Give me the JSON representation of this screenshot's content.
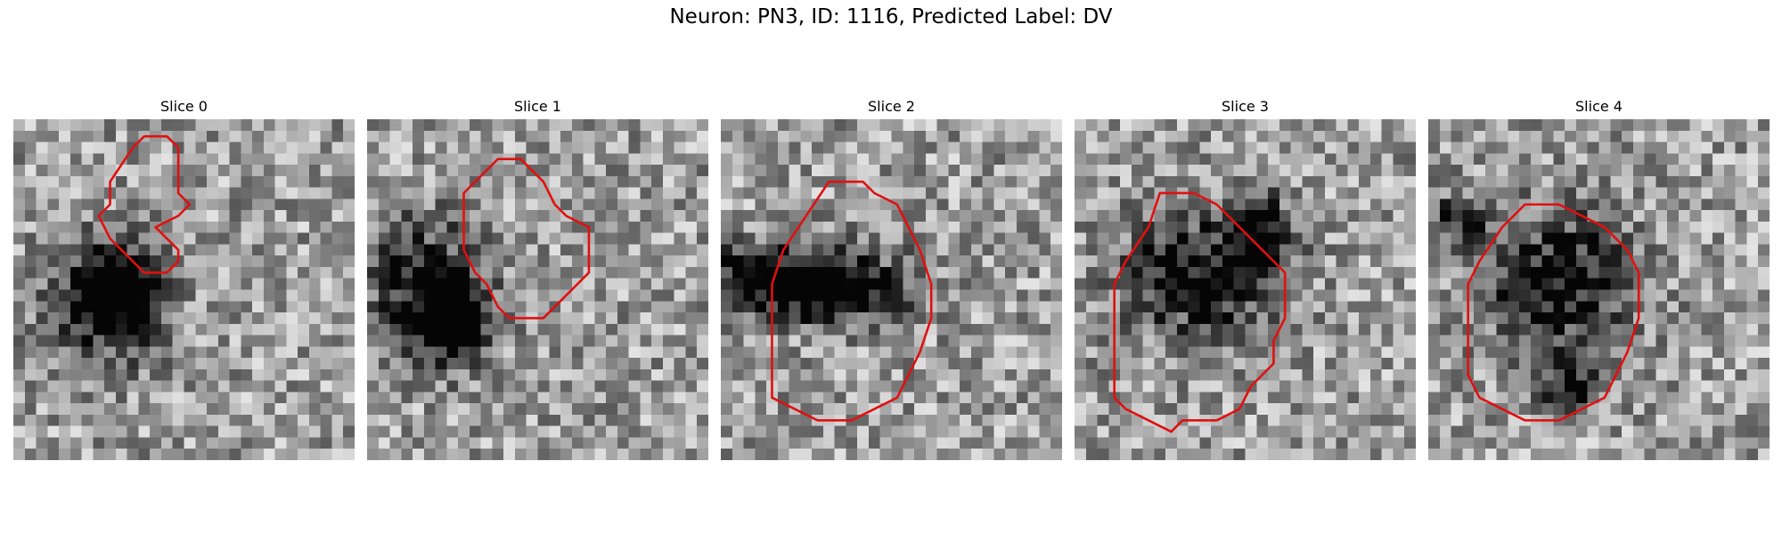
{
  "figure": {
    "title": "Neuron: PN3, ID: 1116, Predicted Label: DV",
    "accent_color": "#e01010"
  },
  "panels": [
    {
      "title": "Slice 0",
      "contour": [
        [
          11.5,
          1.5
        ],
        [
          13.5,
          1.5
        ],
        [
          14.5,
          2.5
        ],
        [
          14.5,
          6.5
        ],
        [
          15.5,
          7.5
        ],
        [
          14.5,
          8.5
        ],
        [
          12.5,
          9.5
        ],
        [
          13.5,
          10.5
        ],
        [
          14.5,
          11.5
        ],
        [
          14.5,
          12.5
        ],
        [
          13.5,
          13.5
        ],
        [
          11.5,
          13.5
        ],
        [
          10.5,
          12.5
        ],
        [
          9.5,
          11.5
        ],
        [
          8.5,
          10.5
        ],
        [
          7.5,
          8.5
        ],
        [
          8.5,
          7.5
        ],
        [
          8.5,
          5.5
        ],
        [
          10.5,
          2.5
        ]
      ],
      "dark_blobs": [
        [
          8.5,
          16,
          5,
          5.5,
          0.75
        ],
        [
          9,
          15,
          2.5,
          2.5,
          0.9
        ]
      ]
    },
    {
      "title": "Slice 1",
      "contour": [
        [
          11.5,
          3.5
        ],
        [
          13.5,
          3.5
        ],
        [
          15.5,
          5.5
        ],
        [
          16.5,
          7.5
        ],
        [
          17.5,
          8.5
        ],
        [
          19.5,
          9.5
        ],
        [
          19.5,
          13.5
        ],
        [
          16.5,
          16.5
        ],
        [
          15.5,
          17.5
        ],
        [
          12.5,
          17.5
        ],
        [
          11.5,
          16.5
        ],
        [
          10.5,
          14.5
        ],
        [
          9.5,
          13.5
        ],
        [
          8.5,
          11.5
        ],
        [
          8.5,
          6.5
        ],
        [
          9.5,
          5.5
        ]
      ],
      "dark_blobs": [
        [
          5,
          15,
          5,
          6,
          0.7
        ],
        [
          8,
          18,
          3,
          3,
          0.85
        ]
      ]
    },
    {
      "title": "Slice 2",
      "contour": [
        [
          9.5,
          5.5
        ],
        [
          12.5,
          5.5
        ],
        [
          13.5,
          6.5
        ],
        [
          15.5,
          7.5
        ],
        [
          16.5,
          9.5
        ],
        [
          17.5,
          11.5
        ],
        [
          18.5,
          14.5
        ],
        [
          18.5,
          17.5
        ],
        [
          17.5,
          20.5
        ],
        [
          16.5,
          22.5
        ],
        [
          15.5,
          24.5
        ],
        [
          13.5,
          25.5
        ],
        [
          11.5,
          26.5
        ],
        [
          8.5,
          26.5
        ],
        [
          6.5,
          25.5
        ],
        [
          4.5,
          24.5
        ],
        [
          4.5,
          21.5
        ],
        [
          4.5,
          14.5
        ],
        [
          5.5,
          11.5
        ],
        [
          7.5,
          8.5
        ]
      ],
      "dark_blobs": [
        [
          7,
          14.5,
          6,
          3.5,
          0.7
        ],
        [
          2,
          13.5,
          3,
          2.5,
          0.6
        ],
        [
          12.5,
          15,
          5,
          3,
          0.55
        ]
      ]
    },
    {
      "title": "Slice 3",
      "contour": [
        [
          7.5,
          6.5
        ],
        [
          10.5,
          6.5
        ],
        [
          12.5,
          7.5
        ],
        [
          14.5,
          9.5
        ],
        [
          16.5,
          11.5
        ],
        [
          18.5,
          13.5
        ],
        [
          18.5,
          17.5
        ],
        [
          17.5,
          19.5
        ],
        [
          17.5,
          21.5
        ],
        [
          15.5,
          23.5
        ],
        [
          14.5,
          25.5
        ],
        [
          12.5,
          26.5
        ],
        [
          9.5,
          26.5
        ],
        [
          8.5,
          27.5
        ],
        [
          6.5,
          26.5
        ],
        [
          4.5,
          25.5
        ],
        [
          3.5,
          24.5
        ],
        [
          3.5,
          14.5
        ],
        [
          4.5,
          12.5
        ],
        [
          6.5,
          9.5
        ]
      ],
      "dark_blobs": [
        [
          10.5,
          14,
          7,
          5.5,
          0.65
        ],
        [
          16,
          9.5,
          3,
          3,
          0.7
        ]
      ]
    },
    {
      "title": "Slice 4",
      "contour": [
        [
          8.5,
          7.5
        ],
        [
          11.5,
          7.5
        ],
        [
          13.5,
          8.5
        ],
        [
          15.5,
          9.5
        ],
        [
          17.5,
          11.5
        ],
        [
          18.5,
          13.5
        ],
        [
          18.5,
          17.5
        ],
        [
          17.5,
          20.5
        ],
        [
          16.5,
          22.5
        ],
        [
          15.5,
          24.5
        ],
        [
          13.5,
          25.5
        ],
        [
          11.5,
          26.5
        ],
        [
          8.5,
          26.5
        ],
        [
          6.5,
          25.5
        ],
        [
          4.5,
          24.5
        ],
        [
          3.5,
          22.5
        ],
        [
          3.5,
          14.5
        ],
        [
          4.5,
          12.5
        ],
        [
          6.5,
          9.5
        ]
      ],
      "dark_blobs": [
        [
          11.5,
          14.5,
          6.5,
          6,
          0.7
        ],
        [
          12,
          23.5,
          3,
          2,
          0.5
        ],
        [
          3,
          9,
          3,
          3,
          0.45
        ]
      ]
    }
  ]
}
